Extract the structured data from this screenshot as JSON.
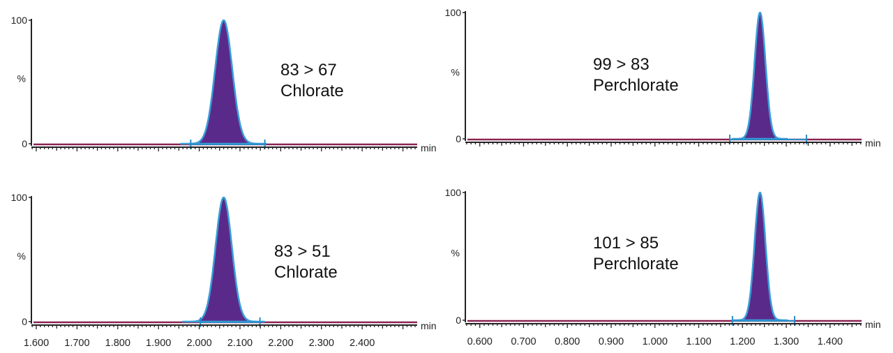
{
  "colors": {
    "peak_fill": "#5a2a8a",
    "peak_outline": "#3a9fd8",
    "baseline": "#8b2252",
    "integration_marker": "#2a8cc8",
    "axis": "#222222"
  },
  "chart_data": [
    {
      "type": "area",
      "transition": "83 > 67",
      "compound": "Chlorate",
      "x_unit": "min",
      "y_label": "%",
      "y_ticks": [
        "0",
        "100"
      ],
      "xlim": [
        1.588,
        2.535
      ],
      "ylim": [
        0,
        100
      ],
      "x_tick_labels": [],
      "peak_rt": 2.06,
      "peak_height": 100,
      "integration": [
        1.979,
        2.161
      ],
      "grid": false
    },
    {
      "type": "area",
      "transition": "99 > 83",
      "compound": "Perchlorate",
      "x_unit": "min",
      "y_label": "%",
      "y_ticks": [
        "0",
        "100"
      ],
      "xlim": [
        0.567,
        1.472
      ],
      "ylim": [
        0,
        100
      ],
      "x_tick_labels": [],
      "peak_rt": 1.24,
      "peak_height": 100,
      "integration": [
        1.171,
        1.346
      ],
      "grid": false
    },
    {
      "type": "area",
      "transition": "83 > 51",
      "compound": "Chlorate",
      "x_unit": "min",
      "y_label": "%",
      "y_ticks": [
        "0",
        "100"
      ],
      "xlim": [
        1.588,
        2.535
      ],
      "ylim": [
        0,
        100
      ],
      "x_tick_labels": [
        "1.600",
        "1.700",
        "1.800",
        "1.900",
        "2.000",
        "2.100",
        "2.200",
        "2.300",
        "2.400"
      ],
      "peak_rt": 2.06,
      "peak_height": 100,
      "integration": [
        2.003,
        2.149
      ],
      "grid": false
    },
    {
      "type": "area",
      "transition": "101 > 85",
      "compound": "Perchlorate",
      "x_unit": "min",
      "y_label": "%",
      "y_ticks": [
        "0",
        "100"
      ],
      "xlim": [
        0.567,
        1.472
      ],
      "ylim": [
        0,
        100
      ],
      "x_tick_labels": [
        "0.600",
        "0.700",
        "0.800",
        "0.900",
        "1.000",
        "1.100",
        "1.200",
        "1.300",
        "1.400"
      ],
      "peak_rt": 1.24,
      "peak_height": 100,
      "integration": [
        1.177,
        1.319
      ],
      "grid": false
    }
  ]
}
